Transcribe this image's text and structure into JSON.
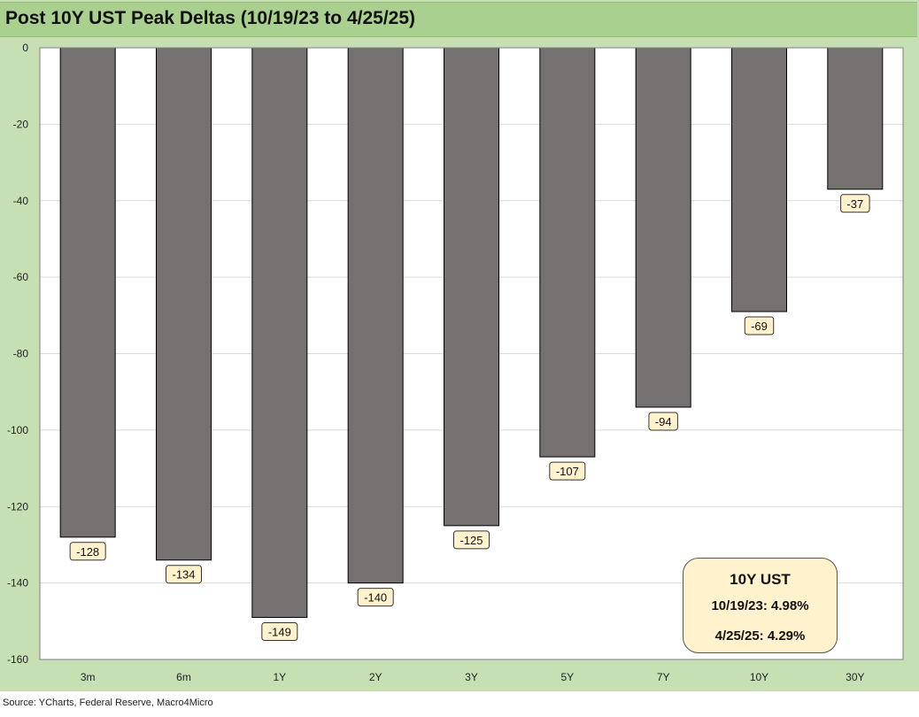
{
  "title": "Post 10Y UST Peak Deltas (10/19/23 to 4/25/25)",
  "footer": "Source: YCharts, Federal Reserve, Macro4Micro",
  "colors": {
    "frame": "#c6e0b4",
    "title_bar": "#a9d08e",
    "bar": "#767171",
    "label_box": "#fff2cc"
  },
  "info_box": {
    "title": "10Y UST",
    "rows": [
      {
        "date": "10/19/23:",
        "value": "4.98%"
      },
      {
        "date": "4/25/25:",
        "value": "4.29%"
      }
    ]
  },
  "chart_data": {
    "type": "bar",
    "title": "Post 10Y UST Peak Deltas (10/19/23 to 4/25/25)",
    "xlabel": "",
    "ylabel": "",
    "categories": [
      "3m",
      "6m",
      "1Y",
      "2Y",
      "3Y",
      "5Y",
      "7Y",
      "10Y",
      "30Y"
    ],
    "values": [
      -128,
      -134,
      -149,
      -140,
      -125,
      -107,
      -94,
      -69,
      -37
    ],
    "data_labels": [
      "-128",
      "-134",
      "-149",
      "-140",
      "-125",
      "-107",
      "-94",
      "-69",
      "-37"
    ],
    "ylim": [
      -160,
      0
    ],
    "yticks": [
      0,
      -20,
      -40,
      -60,
      -80,
      -100,
      -120,
      -140,
      -160
    ],
    "ytick_labels": [
      "0",
      "-20",
      "-40",
      "-60",
      "-80",
      "-100",
      "-120",
      "-140",
      "-160"
    ],
    "grid": true,
    "legend": "none"
  }
}
